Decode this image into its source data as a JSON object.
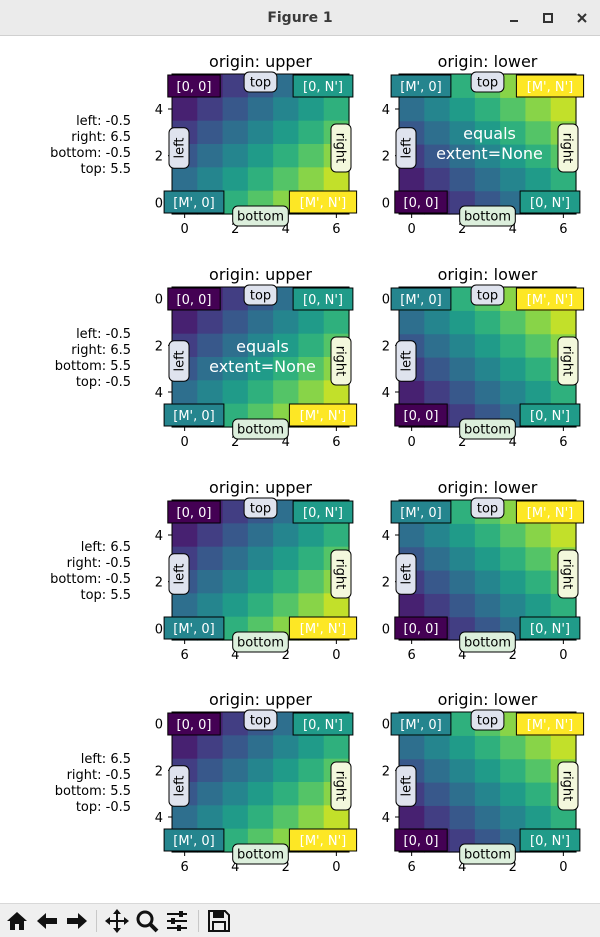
{
  "window": {
    "title": "Figure 1",
    "minimize_icon": "minimize-icon",
    "maximize_icon": "maximize-icon",
    "close_icon": "close-icon"
  },
  "toolbar": {
    "buttons": [
      {
        "name": "home-button",
        "icon": "home-icon"
      },
      {
        "name": "back-button",
        "icon": "back-arrow-icon"
      },
      {
        "name": "forward-button",
        "icon": "forward-arrow-icon"
      },
      {
        "name": "pan-button",
        "icon": "pan-icon"
      },
      {
        "name": "zoom-button",
        "icon": "zoom-icon"
      },
      {
        "name": "subplots-button",
        "icon": "sliders-icon"
      },
      {
        "name": "save-button",
        "icon": "save-icon"
      }
    ]
  },
  "chart_data": {
    "type": "heatmap",
    "colormap": "viridis",
    "image_array": {
      "rows": 6,
      "cols": 7,
      "formula": "value = row + col",
      "value_range": [
        0,
        11
      ]
    },
    "rows": [
      {
        "extent_text": [
          "left: -0.5",
          "right: 6.5",
          "bottom: -0.5",
          "top: 5.5"
        ],
        "extent": {
          "left": -0.5,
          "right": 6.5,
          "bottom": -0.5,
          "top": 5.5
        }
      },
      {
        "extent_text": [
          "left: -0.5",
          "right: 6.5",
          "bottom: 5.5",
          "top: -0.5"
        ],
        "extent": {
          "left": -0.5,
          "right": 6.5,
          "bottom": 5.5,
          "top": -0.5
        }
      },
      {
        "extent_text": [
          "left: 6.5",
          "right: -0.5",
          "bottom: -0.5",
          "top: 5.5"
        ],
        "extent": {
          "left": 6.5,
          "right": -0.5,
          "bottom": -0.5,
          "top": 5.5
        }
      },
      {
        "extent_text": [
          "left: 6.5",
          "right: -0.5",
          "bottom: 5.5",
          "top: -0.5"
        ],
        "extent": {
          "left": 6.5,
          "right": -0.5,
          "bottom": 5.5,
          "top": -0.5
        }
      }
    ],
    "columns": [
      {
        "origin": "upper",
        "title": "origin: upper"
      },
      {
        "origin": "lower",
        "title": "origin: lower"
      }
    ],
    "side_labels": {
      "left": "left",
      "right": "right",
      "top": "top",
      "bottom": "bottom"
    },
    "corner_labels": {
      "origin": "[0, 0]",
      "first_row_end": "[0, N']",
      "first_col_end": "[M', 0]",
      "far_corner": "[M', N']"
    },
    "equals_label": "equals\nextent=None",
    "equals_panels": [
      [
        0,
        1
      ],
      [
        1,
        0
      ]
    ],
    "xticks": [
      0,
      2,
      4,
      6
    ],
    "yticks": [
      0,
      2,
      4
    ]
  }
}
